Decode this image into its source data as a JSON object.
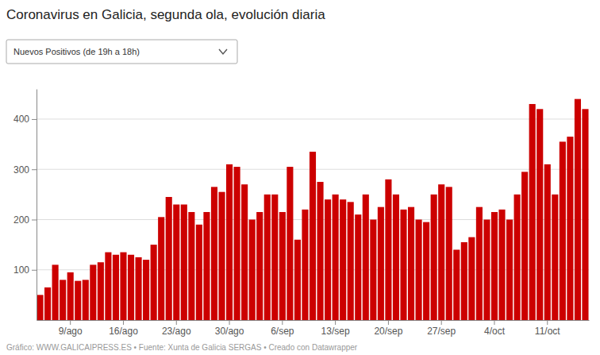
{
  "chart_data": {
    "type": "bar",
    "title": "Coronavirus en Galicia, segunda ola, evolución diaria",
    "subtitle": "Nuevos Positivos (de 19h a 18h)",
    "annotations": [
      "Gráfico: WWW.GALICAIPRESS.ES • Fuente: Xunta de Galicia SERGAS • Creado con Datawrapper"
    ],
    "categories": [
      null,
      null,
      null,
      null,
      "9/ago",
      null,
      null,
      null,
      null,
      null,
      null,
      "16/ago",
      null,
      null,
      null,
      null,
      null,
      null,
      "23/ago",
      null,
      null,
      null,
      null,
      null,
      null,
      "30/ago",
      null,
      null,
      null,
      null,
      null,
      null,
      "6/sep",
      null,
      null,
      null,
      null,
      null,
      null,
      "13/sep",
      null,
      null,
      null,
      null,
      null,
      null,
      "20/sep",
      null,
      null,
      null,
      null,
      null,
      null,
      "27/sep",
      null,
      null,
      null,
      null,
      null,
      null,
      "4/oct",
      null,
      null,
      null,
      null,
      null,
      null,
      "11/oct",
      null,
      null,
      null,
      null,
      null
    ],
    "values": [
      50,
      65,
      110,
      80,
      95,
      78,
      80,
      110,
      115,
      135,
      130,
      135,
      130,
      125,
      120,
      150,
      205,
      245,
      230,
      230,
      215,
      190,
      215,
      265,
      255,
      310,
      305,
      270,
      200,
      215,
      250,
      250,
      215,
      305,
      160,
      220,
      335,
      275,
      240,
      250,
      240,
      235,
      210,
      250,
      200,
      225,
      280,
      250,
      220,
      225,
      200,
      195,
      250,
      270,
      265,
      140,
      155,
      165,
      225,
      200,
      215,
      220,
      200,
      250,
      295,
      430,
      420,
      310,
      250,
      355,
      365,
      440,
      420
    ],
    "color": "#cc0000",
    "ylim": [
      0,
      460
    ],
    "yticks": [
      100,
      200,
      300,
      400
    ],
    "grid": true
  }
}
